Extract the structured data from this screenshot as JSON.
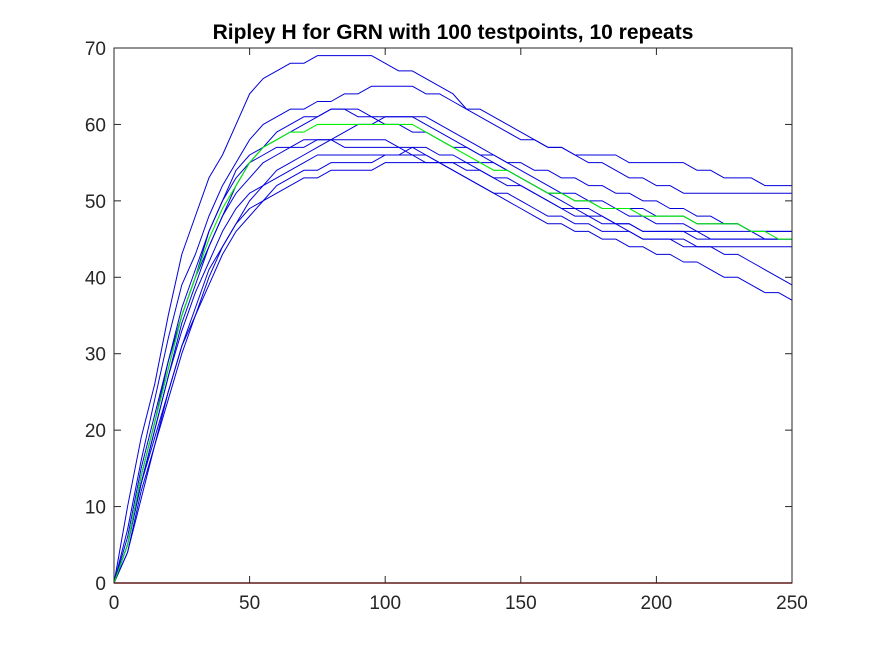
{
  "chart_data": {
    "type": "line",
    "title": "Ripley H for GRN with 100 testpoints, 10 repeats",
    "xlabel": "",
    "ylabel": "",
    "xlim": [
      0,
      250
    ],
    "ylim": [
      0,
      70
    ],
    "x_ticks": [
      "0",
      "50",
      "100",
      "150",
      "200",
      "250"
    ],
    "y_ticks": [
      "0",
      "10",
      "20",
      "30",
      "40",
      "50",
      "60",
      "70"
    ],
    "grid": false,
    "legend": "none",
    "colors": {
      "repeats": "#0000dd",
      "mean": "#00ee00",
      "baseline": "#cc0000",
      "axis": "#262626"
    },
    "x": [
      0,
      5,
      10,
      15,
      20,
      25,
      30,
      35,
      40,
      45,
      50,
      55,
      60,
      65,
      70,
      75,
      80,
      85,
      90,
      95,
      100,
      105,
      110,
      115,
      120,
      125,
      130,
      135,
      140,
      145,
      150,
      155,
      160,
      165,
      170,
      175,
      180,
      185,
      190,
      195,
      200,
      205,
      210,
      215,
      220,
      225,
      230,
      235,
      240,
      245,
      250
    ],
    "series": [
      {
        "values": [
          0,
          10,
          19,
          26,
          35,
          43,
          48,
          53,
          56,
          60,
          64,
          66,
          67,
          68,
          68,
          69,
          69,
          69,
          69,
          69,
          68,
          67,
          67,
          66,
          65,
          64,
          62,
          61,
          60,
          59,
          58,
          58,
          57,
          57,
          56,
          56,
          56,
          56,
          55,
          55,
          55,
          55,
          55,
          54,
          54,
          53,
          53,
          53,
          52,
          52,
          52
        ]
      },
      {
        "values": [
          0,
          7,
          16,
          24,
          32,
          39,
          43,
          48,
          52,
          55,
          58,
          60,
          61,
          62,
          62,
          63,
          63,
          64,
          64,
          65,
          65,
          65,
          65,
          64,
          64,
          63,
          62,
          62,
          61,
          60,
          59,
          58,
          57,
          57,
          56,
          55,
          55,
          54,
          53,
          53,
          52,
          52,
          51,
          51,
          51,
          51,
          51,
          51,
          51,
          51,
          51
        ]
      },
      {
        "values": [
          0,
          5,
          14,
          21,
          28,
          35,
          40,
          46,
          50,
          54,
          56,
          57,
          58,
          59,
          60,
          61,
          62,
          62,
          62,
          61,
          61,
          61,
          61,
          61,
          60,
          59,
          58,
          57,
          56,
          55,
          54,
          53,
          52,
          51,
          51,
          50,
          50,
          49,
          49,
          49,
          48,
          48,
          48,
          47,
          47,
          47,
          47,
          46,
          46,
          46,
          46
        ]
      },
      {
        "values": [
          0,
          5,
          13,
          20,
          27,
          34,
          39,
          44,
          48,
          52,
          55,
          57,
          59,
          60,
          61,
          61,
          62,
          62,
          61,
          61,
          60,
          60,
          59,
          59,
          58,
          57,
          57,
          56,
          56,
          55,
          55,
          54,
          54,
          53,
          53,
          52,
          52,
          51,
          51,
          50,
          50,
          49,
          49,
          48,
          48,
          47,
          47,
          46,
          46,
          46,
          46
        ]
      },
      {
        "values": [
          0,
          4,
          12,
          18,
          24,
          30,
          35,
          40,
          44,
          47,
          50,
          52,
          54,
          55,
          56,
          57,
          58,
          59,
          60,
          60,
          61,
          61,
          61,
          60,
          59,
          58,
          57,
          56,
          55,
          54,
          53,
          52,
          51,
          51,
          50,
          50,
          49,
          49,
          48,
          48,
          47,
          47,
          47,
          46,
          46,
          46,
          46,
          46,
          45,
          45,
          45
        ]
      },
      {
        "values": [
          0,
          5,
          13,
          20,
          27,
          33,
          38,
          42,
          46,
          49,
          51,
          52,
          53,
          54,
          55,
          56,
          56,
          56,
          56,
          56,
          56,
          56,
          56,
          55,
          55,
          55,
          55,
          55,
          55,
          54,
          53,
          52,
          51,
          50,
          49,
          49,
          48,
          47,
          47,
          46,
          46,
          46,
          46,
          46,
          45,
          45,
          45,
          45,
          45,
          45,
          45
        ]
      },
      {
        "values": [
          0,
          4,
          11,
          18,
          25,
          31,
          36,
          41,
          44,
          47,
          49,
          50,
          52,
          53,
          54,
          54,
          55,
          55,
          55,
          55,
          56,
          56,
          57,
          57,
          56,
          56,
          55,
          54,
          53,
          53,
          52,
          51,
          50,
          49,
          48,
          48,
          47,
          47,
          46,
          45,
          45,
          45,
          45,
          44,
          44,
          44,
          44,
          44,
          44,
          44,
          44
        ]
      },
      {
        "values": [
          0,
          6,
          15,
          22,
          29,
          35,
          40,
          44,
          48,
          51,
          53,
          55,
          56,
          57,
          58,
          58,
          58,
          58,
          58,
          58,
          58,
          57,
          57,
          56,
          55,
          54,
          53,
          52,
          51,
          51,
          50,
          49,
          48,
          48,
          47,
          47,
          46,
          46,
          46,
          45,
          45,
          45,
          44,
          44,
          44,
          43,
          43,
          42,
          41,
          40,
          39
        ]
      },
      {
        "values": [
          0,
          5,
          14,
          21,
          29,
          36,
          41,
          46,
          50,
          53,
          55,
          56,
          57,
          57,
          57,
          58,
          58,
          57,
          57,
          57,
          57,
          57,
          56,
          56,
          55,
          54,
          53,
          52,
          51,
          50,
          49,
          48,
          47,
          47,
          46,
          46,
          45,
          45,
          44,
          44,
          43,
          43,
          42,
          42,
          41,
          40,
          40,
          39,
          38,
          38,
          37
        ]
      },
      {
        "values": [
          0,
          5,
          13,
          19,
          25,
          31,
          35,
          39,
          43,
          46,
          48,
          50,
          51,
          52,
          53,
          53,
          54,
          54,
          54,
          54,
          55,
          55,
          55,
          55,
          55,
          55,
          54,
          54,
          53,
          52,
          52,
          51,
          50,
          49,
          49,
          48,
          48,
          47,
          47,
          46,
          46,
          46,
          46,
          45,
          45,
          45,
          45,
          45,
          45,
          45,
          45
        ]
      },
      {
        "values": [
          0,
          5,
          14,
          21,
          28,
          35,
          40,
          45,
          49,
          52,
          55,
          57,
          58,
          59,
          59,
          60,
          60,
          60,
          60,
          60,
          60,
          60,
          60,
          59,
          58,
          57,
          56,
          55,
          54,
          54,
          53,
          52,
          51,
          51,
          50,
          50,
          49,
          49,
          49,
          48,
          48,
          48,
          48,
          47,
          47,
          47,
          47,
          46,
          46,
          45,
          45
        ]
      },
      {
        "values": [
          0,
          0,
          0,
          0,
          0,
          0,
          0,
          0,
          0,
          0,
          0,
          0,
          0,
          0,
          0,
          0,
          0,
          0,
          0,
          0,
          0,
          0,
          0,
          0,
          0,
          0,
          0,
          0,
          0,
          0,
          0,
          0,
          0,
          0,
          0,
          0,
          0,
          0,
          0,
          0,
          0,
          0,
          0,
          0,
          0,
          0,
          0,
          0,
          0,
          0,
          0
        ]
      }
    ]
  }
}
